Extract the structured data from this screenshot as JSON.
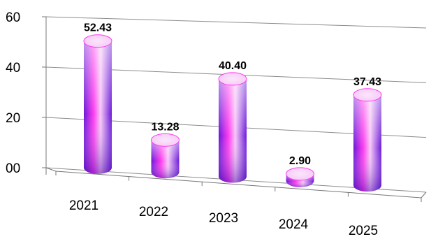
{
  "chart_data": {
    "type": "bar",
    "style": "3d-cylinder",
    "categories": [
      "2021",
      "2022",
      "2023",
      "2024",
      "2025"
    ],
    "values": [
      52.43,
      13.28,
      40.4,
      2.9,
      37.43
    ],
    "value_labels": [
      "52.43",
      "13.28",
      "40.40",
      "2.90",
      "37.43"
    ],
    "y_ticks": [
      "00",
      "20",
      "40",
      "60"
    ],
    "ylim": [
      0,
      60
    ],
    "grid": true,
    "legend": "none",
    "title": "",
    "xlabel": "",
    "ylabel": "",
    "colors": {
      "bar_light": "#f6c8f6",
      "bar_mid": "#ff3cf0",
      "bar_dark": "#6a18d8",
      "grid": "#8c8c8c"
    }
  }
}
